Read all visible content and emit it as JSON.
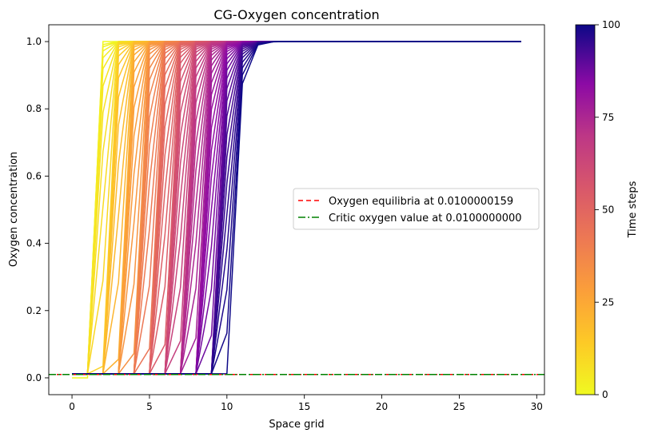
{
  "chart_data": {
    "type": "line",
    "title": "CG-Oxygen concentration",
    "xlabel": "Space grid",
    "ylabel": "Oxygen concentration",
    "xlim": [
      -1.5,
      30.5
    ],
    "ylim": [
      -0.05,
      1.05
    ],
    "x_ticks": [
      0,
      5,
      10,
      15,
      20,
      25,
      30
    ],
    "y_ticks": [
      0.0,
      0.2,
      0.4,
      0.6,
      0.8,
      1.0
    ],
    "x_tick_labels": [
      "0",
      "5",
      "10",
      "15",
      "20",
      "25",
      "30"
    ],
    "y_tick_labels": [
      "0.0",
      "0.2",
      "0.4",
      "0.6",
      "0.8",
      "1.0"
    ],
    "grid": false,
    "legend_position": "center-right",
    "series_description": {
      "time_steps": [
        0,
        100
      ],
      "space_points": 30,
      "space_x_range": [
        0,
        29
      ],
      "initial_profile": {
        "x": [
          0,
          1,
          2,
          29
        ],
        "y": [
          0.0,
          0.0,
          1.0,
          1.0
        ]
      },
      "front_x_start": 1,
      "front_x_end": 10,
      "baseline_y": 0.012,
      "plateau_y": 1.0,
      "colormap": "plasma_r"
    },
    "reference_lines": [
      {
        "label": "Oxygen equilibria at 0.0100000159",
        "y": 0.0100000159,
        "color": "#ff0000",
        "style": "dashed"
      },
      {
        "label": "Critic oxygen value at 0.0100000000",
        "y": 0.01,
        "color": "#008000",
        "style": "dashdot"
      }
    ],
    "colorbar": {
      "label": "Time steps",
      "range": [
        0,
        100
      ],
      "ticks": [
        0,
        25,
        50,
        75,
        100
      ],
      "tick_labels": [
        "0",
        "25",
        "50",
        "75",
        "100"
      ],
      "colormap": "plasma_r"
    }
  }
}
